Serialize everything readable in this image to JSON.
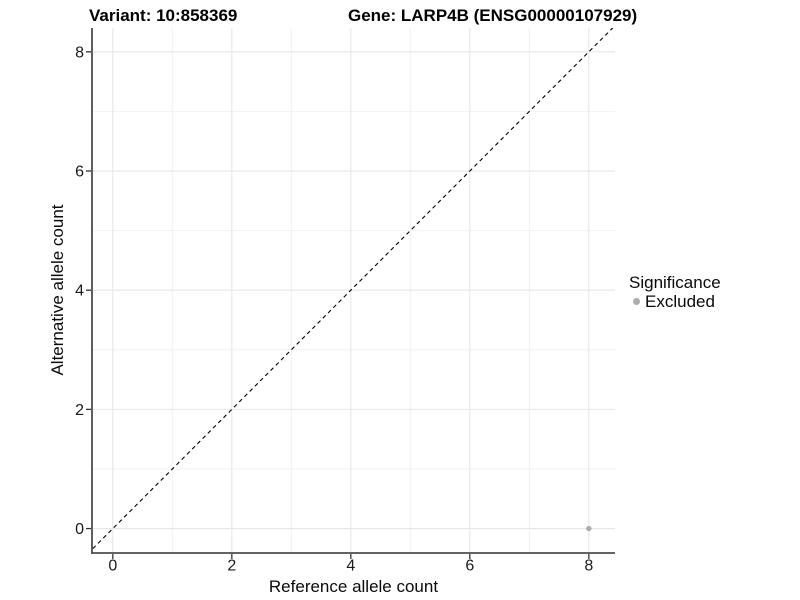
{
  "chart_data": {
    "type": "scatter",
    "title_left": "Variant: 10:858369",
    "title_right": "Gene: LARP4B (ENSG00000107929)",
    "xlabel": "Reference allele count",
    "ylabel": "Alternative allele count",
    "xlim": [
      -0.35,
      8.44
    ],
    "ylim": [
      -0.41,
      8.4
    ],
    "xticks": [
      0,
      2,
      4,
      6,
      8
    ],
    "yticks": [
      0,
      2,
      4,
      6,
      8
    ],
    "minor_xticks": [
      1,
      3,
      5,
      7
    ],
    "minor_yticks": [
      1,
      3,
      5,
      7
    ],
    "grid": true,
    "identity_line": {
      "style": "dashed",
      "color": "#000000",
      "slope": 1,
      "intercept": 0
    },
    "series": [
      {
        "name": "Excluded",
        "color": "#adadad",
        "points": [
          {
            "x": 8,
            "y": 0
          }
        ]
      }
    ],
    "legend": {
      "title": "Significance",
      "position": "right",
      "items": [
        {
          "label": "Excluded",
          "color": "#adadad"
        }
      ]
    },
    "colors": {
      "panel_bg": "#ffffff",
      "grid_major": "#e6e6e6",
      "grid_minor": "#f2f2f2",
      "axis_line": "#4d4d4d",
      "tick": "#333333",
      "tick_label": "#1a1a1a"
    }
  }
}
